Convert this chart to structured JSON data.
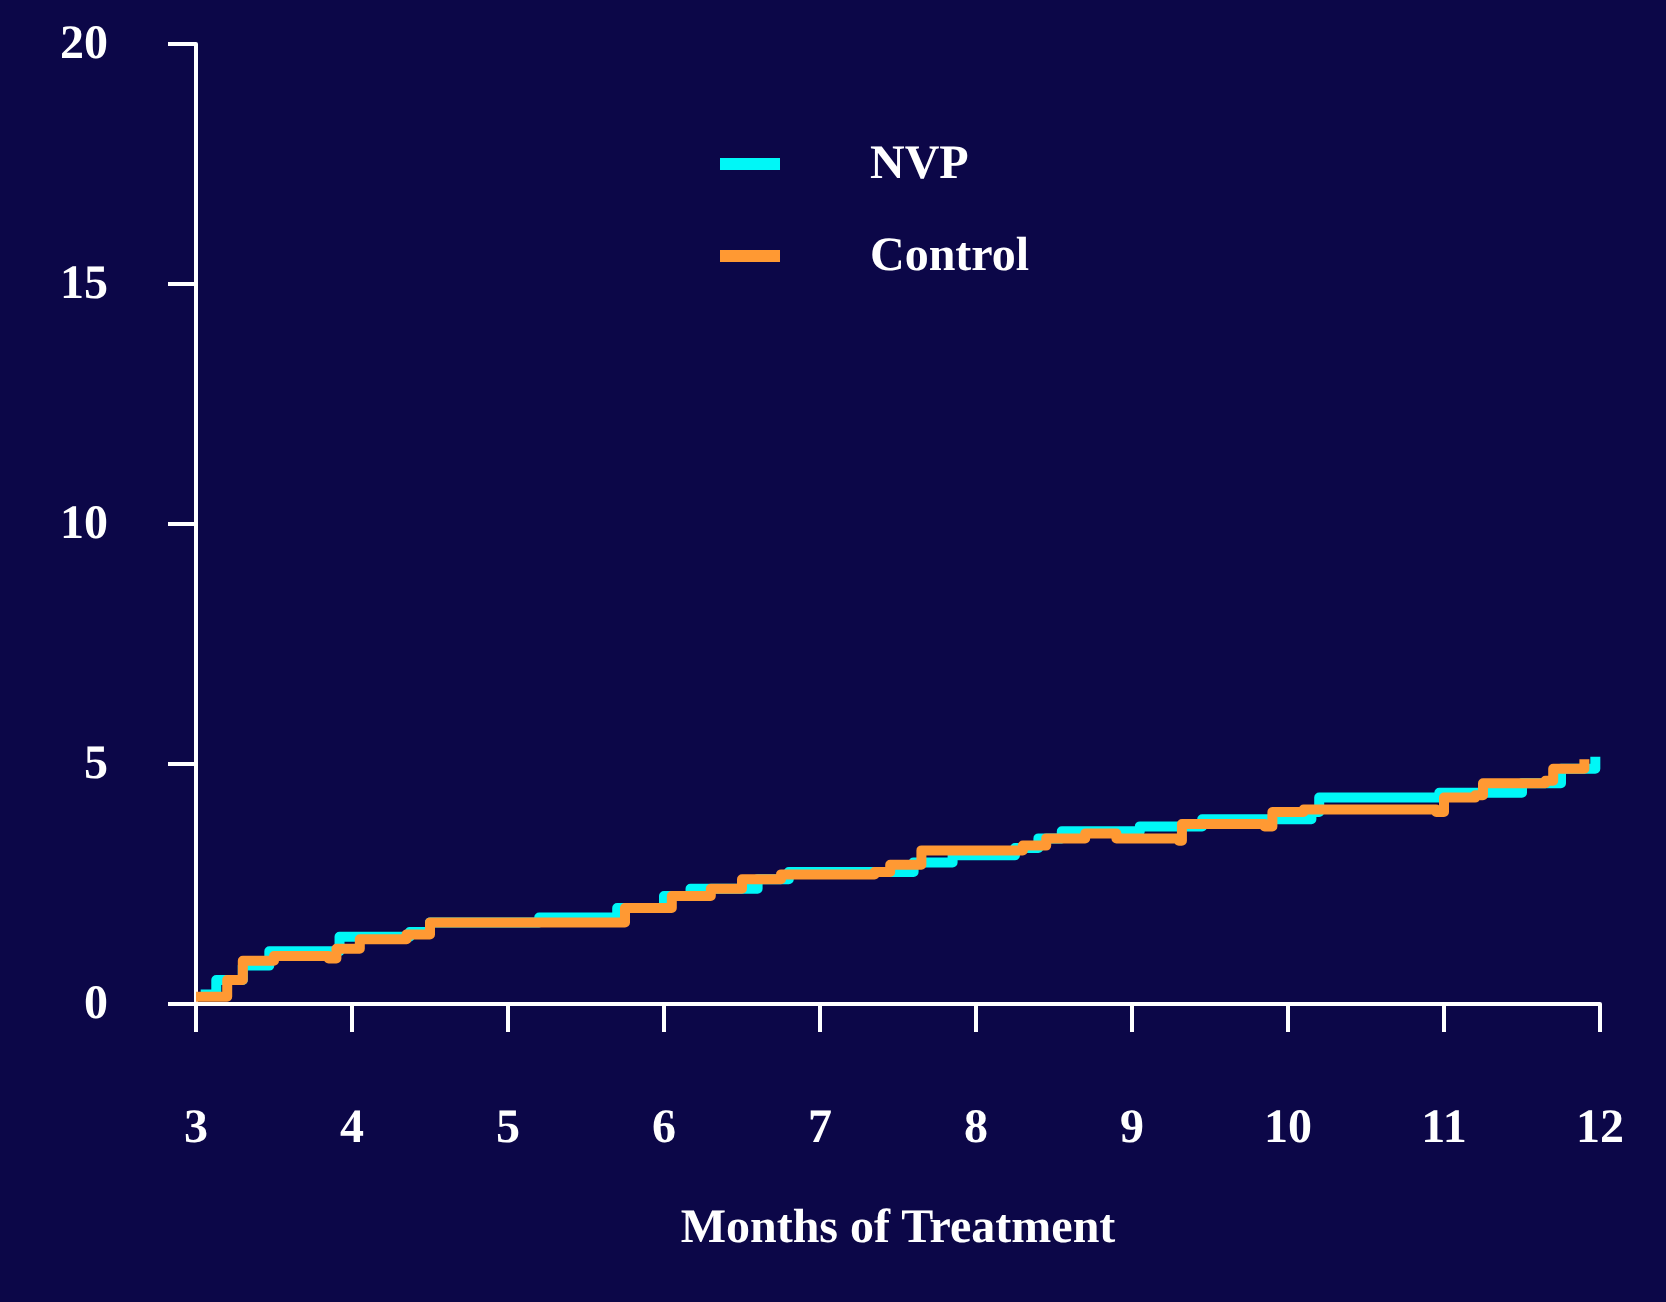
{
  "chart_data": {
    "type": "step",
    "xlabel": "Months of Treatment",
    "xlim": [
      3,
      12
    ],
    "xticks": [
      3,
      4,
      5,
      6,
      7,
      8,
      9,
      10,
      11,
      12
    ],
    "ylim": [
      0,
      20
    ],
    "yticks": [
      0,
      5,
      10,
      15,
      20
    ],
    "grid": false,
    "legend": "top",
    "marker": "none",
    "series": [
      {
        "name": "NVP",
        "color": "#00f7f7",
        "x": [
          3.03,
          3.13,
          3.3,
          3.47,
          3.92,
          4.37,
          4.5,
          5.2,
          5.7,
          6.0,
          6.17,
          6.6,
          6.8,
          7.5,
          7.6,
          7.85,
          8.25,
          8.4,
          8.55,
          9.05,
          9.45,
          10.15,
          10.2,
          10.97,
          11.5,
          11.75,
          11.97
        ],
        "values": [
          0.2,
          0.5,
          0.8,
          1.1,
          1.4,
          1.5,
          1.7,
          1.8,
          2.0,
          2.25,
          2.4,
          2.6,
          2.75,
          2.75,
          2.95,
          3.1,
          3.25,
          3.45,
          3.6,
          3.7,
          3.85,
          4.0,
          4.3,
          4.4,
          4.6,
          4.9,
          5.15
        ]
      },
      {
        "name": "Control",
        "color": "#ff9933",
        "x": [
          3.0,
          3.2,
          3.3,
          3.5,
          3.85,
          3.9,
          4.05,
          4.35,
          4.5,
          5.7,
          5.75,
          6.05,
          6.3,
          6.5,
          6.75,
          7.35,
          7.45,
          7.65,
          8.3,
          8.45,
          8.7,
          8.9,
          9.3,
          9.32,
          9.85,
          9.9,
          10.1,
          10.95,
          11.0,
          11.2,
          11.25,
          11.65,
          11.7,
          11.9
        ],
        "values": [
          0.15,
          0.5,
          0.9,
          1.0,
          0.95,
          1.15,
          1.35,
          1.45,
          1.7,
          1.7,
          2.0,
          2.25,
          2.4,
          2.6,
          2.7,
          2.75,
          2.9,
          3.2,
          3.3,
          3.45,
          3.55,
          3.45,
          3.4,
          3.75,
          3.7,
          4.0,
          4.05,
          4.0,
          4.3,
          4.35,
          4.6,
          4.65,
          4.9,
          5.1
        ]
      }
    ]
  }
}
